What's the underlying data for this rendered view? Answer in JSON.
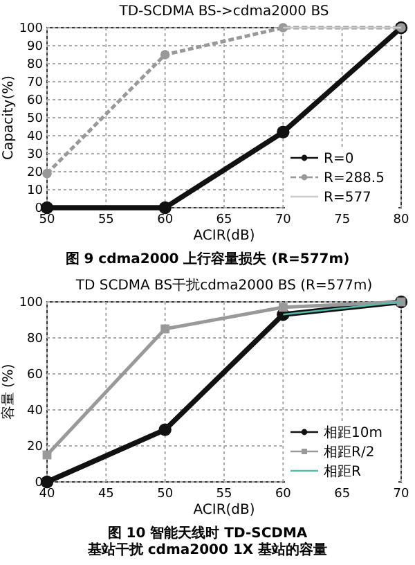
{
  "chart_data": [
    {
      "type": "line",
      "title": "TD-SCDMA BS->cdma2000 BS",
      "xlabel": "ACIR(dB)",
      "ylabel": "Capacity(%)",
      "x": [
        50,
        60,
        70,
        80
      ],
      "xlim": [
        50,
        80
      ],
      "ylim": [
        0,
        100
      ],
      "xticks": [
        50,
        55,
        60,
        65,
        70,
        75,
        80
      ],
      "yticks": [
        0,
        10,
        20,
        30,
        40,
        50,
        60,
        70,
        80,
        90,
        100
      ],
      "grid": true,
      "legend": "right",
      "annotations": [
        "图 9 cdma2000 上行容量损失 (R=577m)"
      ],
      "series": [
        {
          "name": "R=0",
          "color": "#111111",
          "values": [
            0,
            0,
            42,
            100
          ],
          "marker": "circle",
          "line_style": "solid"
        },
        {
          "name": "R=288.5",
          "color": "#999999",
          "values": [
            19,
            85,
            100,
            100
          ],
          "marker": "circle",
          "line_style": "dashed"
        },
        {
          "name": "R=577",
          "color": "#cccccc",
          "values": [
            null,
            null,
            100,
            100
          ],
          "marker": "none",
          "line_style": "solid"
        }
      ]
    },
    {
      "type": "line",
      "title": "TD SCDMA BS干扰cdma2000 BS (R=577m)",
      "xlabel": "ACIR(dB)",
      "ylabel": "容量 (%)",
      "x": [
        40,
        50,
        60,
        70
      ],
      "xlim": [
        40,
        70
      ],
      "ylim": [
        0,
        100
      ],
      "xticks": [
        40,
        45,
        50,
        55,
        60,
        65,
        70
      ],
      "yticks": [
        0,
        20,
        40,
        60,
        80,
        100
      ],
      "grid": true,
      "legend": "right",
      "annotations": [
        "图 10 智能天线时 TD-SCDMA 基站干扰 cdma2000 1X 基站的容量"
      ],
      "series": [
        {
          "name": "相距10m",
          "color": "#111111",
          "values": [
            0,
            29,
            93,
            100
          ],
          "marker": "circle",
          "line_style": "solid"
        },
        {
          "name": "相距R/2",
          "color": "#999999",
          "values": [
            15,
            85,
            97,
            100
          ],
          "marker": "square",
          "line_style": "solid"
        },
        {
          "name": "相距R",
          "color": "#55bbaa",
          "values": [
            null,
            null,
            93,
            100
          ],
          "marker": "none",
          "line_style": "solid"
        }
      ]
    }
  ]
}
